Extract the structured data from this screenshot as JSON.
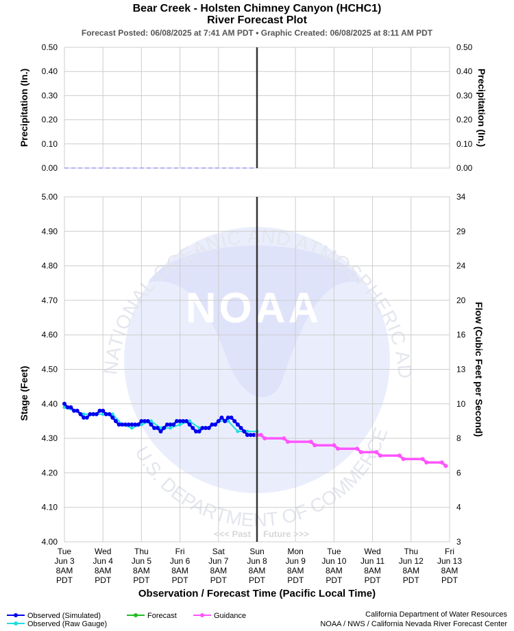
{
  "header": {
    "title": "Bear Creek - Holsten Chimney Canyon (HCHC1)",
    "subtitle": "River Forecast Plot",
    "posted_label": "Forecast Posted: 06/08/2025 at 7:41 AM PDT",
    "separator": "•",
    "created_label": "Graphic Created: 06/08/2025 at 8:11 AM PDT"
  },
  "colors": {
    "observed_sim": "#0000ee",
    "observed_raw": "#22dddd",
    "forecast": "#22bb22",
    "guidance": "#ff55ff",
    "precip": "#9999ff",
    "now_line": "#333333",
    "grid": "#cccccc",
    "watermark": "#e8ecff"
  },
  "watermark": {
    "logo_text": "NOAA",
    "ring_text": "NATIONAL OCEANIC AND ATMOSPHERIC ADMINISTRATION",
    "ring_bottom": "U.S. DEPARTMENT OF COMMERCE"
  },
  "past_future": {
    "past": "<<< Past",
    "future": "Future >>>"
  },
  "legend": {
    "observed_sim": "Observed (Simulated)",
    "observed_raw": "Observed (Raw Gauge)",
    "forecast": "Forecast",
    "guidance": "Guidance"
  },
  "credits": {
    "line1": "California Department of Water Resources",
    "line2": "NOAA / NWS / California Nevada River Forecast Center"
  },
  "chart_data": [
    {
      "type": "line",
      "name": "precipitation",
      "ylabel_left": "Precipitation (In.)",
      "ylabel_right": "Precipitation (In.)",
      "ylim": [
        0,
        0.5
      ],
      "yticks": [
        "0.00",
        "0.10",
        "0.20",
        "0.30",
        "0.40",
        "0.50"
      ],
      "series": [
        {
          "name": "Observed Precipitation",
          "x": [
            0,
            5
          ],
          "values": [
            0.0,
            0.0
          ]
        }
      ]
    },
    {
      "type": "line",
      "name": "stage",
      "ylabel_left": "Stage (Feet)",
      "ylabel_right": "Flow (Cubic Feet per Second)",
      "xlabel": "Observation / Forecast Time (Pacific Local Time)",
      "ylim": [
        4.0,
        5.0
      ],
      "yticks_left": [
        "4.00",
        "4.10",
        "4.20",
        "4.30",
        "4.40",
        "4.50",
        "4.60",
        "4.70",
        "4.80",
        "4.90",
        "5.00"
      ],
      "yticks_right": [
        "3",
        "4",
        "6",
        "8",
        "10",
        "13",
        "16",
        "20",
        "24",
        "29",
        "34"
      ],
      "x_unit": "days since Tue Jun 3 8AM PDT",
      "xlim": [
        0,
        10
      ],
      "now_x": 5,
      "xticks": [
        {
          "day": "Tue",
          "date": "Jun 3",
          "hour": "8AM",
          "tz": "PDT"
        },
        {
          "day": "Wed",
          "date": "Jun 4",
          "hour": "8AM",
          "tz": "PDT"
        },
        {
          "day": "Thu",
          "date": "Jun 5",
          "hour": "8AM",
          "tz": "PDT"
        },
        {
          "day": "Fri",
          "date": "Jun 6",
          "hour": "8AM",
          "tz": "PDT"
        },
        {
          "day": "Sat",
          "date": "Jun 7",
          "hour": "8AM",
          "tz": "PDT"
        },
        {
          "day": "Sun",
          "date": "Jun 8",
          "hour": "8AM",
          "tz": "PDT"
        },
        {
          "day": "Mon",
          "date": "Jun 9",
          "hour": "8AM",
          "tz": "PDT"
        },
        {
          "day": "Tue",
          "date": "Jun 10",
          "hour": "8AM",
          "tz": "PDT"
        },
        {
          "day": "Wed",
          "date": "Jun 11",
          "hour": "8AM",
          "tz": "PDT"
        },
        {
          "day": "Thu",
          "date": "Jun 12",
          "hour": "8AM",
          "tz": "PDT"
        },
        {
          "day": "Fri",
          "date": "Jun 13",
          "hour": "8AM",
          "tz": "PDT"
        }
      ],
      "series": [
        {
          "name": "Observed (Raw Gauge)",
          "x": [
            0.0,
            0.25,
            0.5,
            0.75,
            1.0,
            1.25,
            1.5,
            1.75,
            2.0,
            2.25,
            2.5,
            2.75,
            3.0,
            3.25,
            3.5,
            3.75,
            4.0,
            4.25,
            4.5,
            4.75,
            5.0
          ],
          "values": [
            4.39,
            4.38,
            4.37,
            4.37,
            4.37,
            4.37,
            4.34,
            4.33,
            4.34,
            4.35,
            4.33,
            4.33,
            4.34,
            4.35,
            4.33,
            4.33,
            4.35,
            4.35,
            4.32,
            4.32,
            4.32
          ]
        },
        {
          "name": "Observed (Simulated)",
          "x": [
            0.0,
            0.083,
            0.167,
            0.25,
            0.333,
            0.417,
            0.5,
            0.583,
            0.667,
            0.75,
            0.833,
            0.917,
            1.0,
            1.083,
            1.167,
            1.25,
            1.333,
            1.417,
            1.5,
            1.583,
            1.667,
            1.75,
            1.833,
            1.917,
            2.0,
            2.083,
            2.167,
            2.25,
            2.333,
            2.417,
            2.5,
            2.583,
            2.667,
            2.75,
            2.833,
            2.917,
            3.0,
            3.083,
            3.167,
            3.25,
            3.333,
            3.417,
            3.5,
            3.583,
            3.667,
            3.75,
            3.833,
            3.917,
            4.0,
            4.083,
            4.167,
            4.25,
            4.333,
            4.417,
            4.5,
            4.583,
            4.667,
            4.75,
            4.833,
            4.917,
            5.0
          ],
          "values": [
            4.4,
            4.39,
            4.39,
            4.38,
            4.38,
            4.37,
            4.36,
            4.36,
            4.37,
            4.37,
            4.37,
            4.38,
            4.38,
            4.37,
            4.37,
            4.36,
            4.35,
            4.34,
            4.34,
            4.34,
            4.34,
            4.34,
            4.34,
            4.34,
            4.35,
            4.35,
            4.35,
            4.34,
            4.33,
            4.33,
            4.32,
            4.33,
            4.34,
            4.34,
            4.34,
            4.35,
            4.35,
            4.35,
            4.35,
            4.34,
            4.33,
            4.32,
            4.32,
            4.33,
            4.33,
            4.33,
            4.34,
            4.34,
            4.35,
            4.36,
            4.35,
            4.36,
            4.36,
            4.35,
            4.34,
            4.33,
            4.32,
            4.31,
            4.31,
            4.31,
            4.31
          ]
        },
        {
          "name": "Guidance",
          "x": [
            5.0,
            5.1,
            5.2,
            5.7,
            5.8,
            6.4,
            6.5,
            7.0,
            7.1,
            7.6,
            7.7,
            8.1,
            8.2,
            8.7,
            8.8,
            9.3,
            9.4,
            9.8,
            9.9
          ],
          "values": [
            4.31,
            4.31,
            4.3,
            4.3,
            4.29,
            4.29,
            4.28,
            4.28,
            4.27,
            4.27,
            4.26,
            4.26,
            4.25,
            4.25,
            4.24,
            4.24,
            4.23,
            4.23,
            4.22
          ]
        }
      ]
    }
  ]
}
